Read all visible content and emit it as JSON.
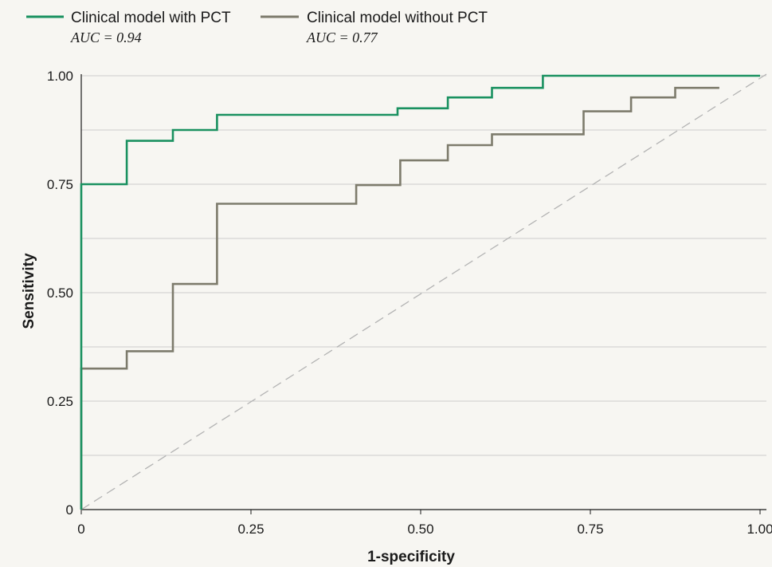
{
  "colors": {
    "background": "#f7f6f2",
    "with_pct": "#1a9160",
    "without_pct": "#7d7b6c",
    "reference": "#b3b3b3",
    "grid": "#cccccc",
    "axis": "#1a1a1a"
  },
  "legend": [
    {
      "name": "Clinical model with PCT",
      "auc": "AUC = 0.94"
    },
    {
      "name": "Clinical model without PCT",
      "auc": "AUC = 0.77"
    }
  ],
  "chart_data": {
    "type": "line",
    "subtype": "roc-step",
    "xlabel": "1-specificity",
    "ylabel": "Sensitivity",
    "xlim": [
      0,
      1
    ],
    "ylim": [
      0,
      1
    ],
    "x_ticks": [
      0,
      0.25,
      0.5,
      0.75,
      1
    ],
    "x_tick_labels": [
      "0",
      "0.25",
      "0.50",
      "0.75",
      "1.00"
    ],
    "y_ticks": [
      0,
      0.25,
      0.5,
      0.75,
      1
    ],
    "y_tick_labels": [
      "0",
      "0.25",
      "0.50",
      "0.75",
      "1.00"
    ],
    "grid": "horizontal",
    "reference_line": {
      "from": [
        0,
        0
      ],
      "to": [
        1,
        1
      ],
      "style": "dashed"
    },
    "series": [
      {
        "name": "Clinical model with PCT",
        "auc": 0.94,
        "points": [
          [
            0,
            0
          ],
          [
            0,
            0.75
          ],
          [
            0.067,
            0.75
          ],
          [
            0.067,
            0.85
          ],
          [
            0.135,
            0.85
          ],
          [
            0.135,
            0.875
          ],
          [
            0.2,
            0.875
          ],
          [
            0.2,
            0.91
          ],
          [
            0.466,
            0.91
          ],
          [
            0.466,
            0.925
          ],
          [
            0.54,
            0.925
          ],
          [
            0.54,
            0.95
          ],
          [
            0.605,
            0.95
          ],
          [
            0.605,
            0.972
          ],
          [
            0.68,
            0.972
          ],
          [
            0.68,
            1.0
          ],
          [
            1.0,
            1.0
          ]
        ]
      },
      {
        "name": "Clinical model without PCT",
        "auc": 0.77,
        "points": [
          [
            0,
            0
          ],
          [
            0,
            0.325
          ],
          [
            0.067,
            0.325
          ],
          [
            0.067,
            0.365
          ],
          [
            0.135,
            0.365
          ],
          [
            0.135,
            0.52
          ],
          [
            0.2,
            0.52
          ],
          [
            0.2,
            0.705
          ],
          [
            0.405,
            0.705
          ],
          [
            0.405,
            0.748
          ],
          [
            0.47,
            0.748
          ],
          [
            0.47,
            0.805
          ],
          [
            0.54,
            0.805
          ],
          [
            0.54,
            0.84
          ],
          [
            0.605,
            0.84
          ],
          [
            0.605,
            0.865
          ],
          [
            0.74,
            0.865
          ],
          [
            0.74,
            0.918
          ],
          [
            0.81,
            0.918
          ],
          [
            0.81,
            0.95
          ],
          [
            0.875,
            0.95
          ],
          [
            0.875,
            0.972
          ],
          [
            0.94,
            0.972
          ]
        ]
      }
    ]
  }
}
